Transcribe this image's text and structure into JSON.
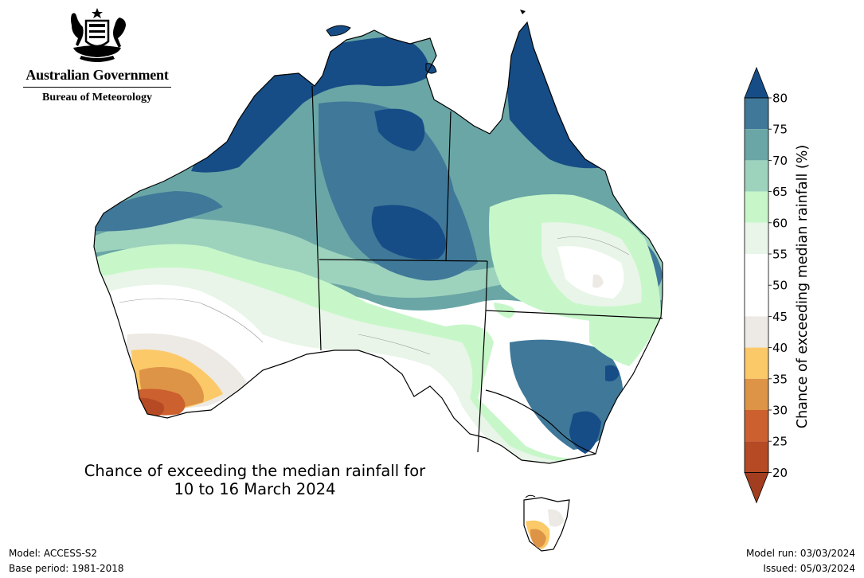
{
  "header": {
    "government": "Australian Government",
    "agency": "Bureau of Meteorology",
    "emblem_icon": "commonwealth-coat-of-arms-icon"
  },
  "map": {
    "title_line1": "Chance of exceeding the median rainfall for",
    "title_line2": "10 to 16 March 2024"
  },
  "colorbar": {
    "label": "Chance of exceeding median rainfall (%)",
    "ticks": [
      "20",
      "25",
      "30",
      "35",
      "40",
      "45",
      "50",
      "55",
      "60",
      "65",
      "70",
      "75",
      "80"
    ],
    "bins": [
      {
        "range": "<20",
        "color": "#a33d1f"
      },
      {
        "range": "20-25",
        "color": "#b54a24"
      },
      {
        "range": "25-30",
        "color": "#cc602e"
      },
      {
        "range": "30-35",
        "color": "#de9446"
      },
      {
        "range": "35-40",
        "color": "#fcc968"
      },
      {
        "range": "40-45",
        "color": "#ede9e4"
      },
      {
        "range": "45-50",
        "color": "#ffffff"
      },
      {
        "range": "50-55",
        "color": "#ffffff"
      },
      {
        "range": "55-60",
        "color": "#e8f5e8"
      },
      {
        "range": "60-65",
        "color": "#c7f7c9"
      },
      {
        "range": "65-70",
        "color": "#9dd2bd"
      },
      {
        "range": "70-75",
        "color": "#6aa6a6"
      },
      {
        "range": "75-80",
        "color": "#3f7899"
      },
      {
        "range": ">80",
        "color": "#164d86"
      }
    ]
  },
  "footer": {
    "model": "Model: ACCESS-S2",
    "base_period": "Base period: 1981-2018",
    "model_run": "Model run: 03/03/2024",
    "issued": "Issued: 05/03/2024"
  }
}
